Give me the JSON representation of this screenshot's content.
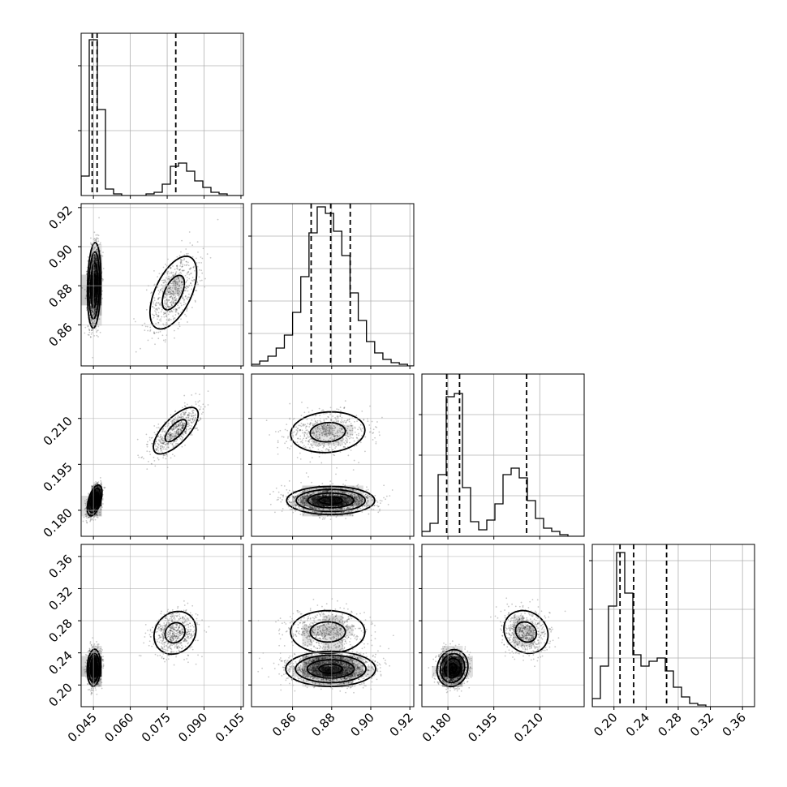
{
  "chart_data": {
    "type": "corner",
    "n_params": 4,
    "params": [
      {
        "range": [
          0.04,
          0.106
        ],
        "ticks": [
          0.045,
          0.06,
          0.075,
          0.09,
          0.105
        ],
        "tick_labels": [
          "0.045",
          "0.060",
          "0.075",
          "0.090",
          "0.105"
        ],
        "hist": {
          "edges": [
            0.04,
            0.0433,
            0.0466,
            0.0499,
            0.0532,
            0.0565,
            0.0598,
            0.0631,
            0.0664,
            0.0697,
            0.073,
            0.0763,
            0.0796,
            0.0829,
            0.0862,
            0.0895,
            0.0928,
            0.0961,
            0.0994,
            0.1027,
            0.106
          ],
          "counts": [
            0.12,
            0.96,
            0.53,
            0.04,
            0.01,
            0.0,
            0.0,
            0.0,
            0.01,
            0.02,
            0.07,
            0.18,
            0.2,
            0.15,
            0.09,
            0.05,
            0.02,
            0.01,
            0.0,
            0.0
          ]
        },
        "quantiles": [
          0.0445,
          0.0465,
          0.0785
        ],
        "hist_gridlines": [
          0.4,
          0.8
        ]
      },
      {
        "range": [
          0.839,
          0.922
        ],
        "ticks": [
          0.86,
          0.88,
          0.9,
          0.92
        ],
        "tick_labels": [
          "0.86",
          "0.88",
          "0.90",
          "0.92"
        ],
        "hist": {
          "edges": [
            0.839,
            0.8432,
            0.8474,
            0.8516,
            0.8558,
            0.86,
            0.8642,
            0.8684,
            0.8726,
            0.8768,
            0.881,
            0.8852,
            0.8894,
            0.8936,
            0.8978,
            0.902,
            0.9062,
            0.9104,
            0.9146,
            0.9188,
            0.922
          ],
          "counts": [
            0.01,
            0.03,
            0.06,
            0.11,
            0.19,
            0.33,
            0.55,
            0.82,
            0.98,
            0.94,
            0.83,
            0.68,
            0.45,
            0.28,
            0.15,
            0.08,
            0.04,
            0.02,
            0.01,
            0.0
          ]
        },
        "quantiles": [
          0.8695,
          0.8795,
          0.8895
        ],
        "hist_gridlines": [
          0.2,
          0.4,
          0.6,
          0.8
        ]
      },
      {
        "range": [
          0.1715,
          0.2245
        ],
        "ticks": [
          0.18,
          0.195,
          0.21
        ],
        "tick_labels": [
          "0.180",
          "0.195",
          "0.210"
        ],
        "hist": {
          "edges": [
            0.1715,
            0.17415,
            0.1768,
            0.17945,
            0.1821,
            0.18475,
            0.1874,
            0.19005,
            0.1927,
            0.19535,
            0.198,
            0.20065,
            0.2033,
            0.20595,
            0.2086,
            0.21125,
            0.2139,
            0.21655,
            0.2192,
            0.22185,
            0.2245
          ],
          "counts": [
            0.03,
            0.08,
            0.38,
            0.86,
            0.88,
            0.3,
            0.09,
            0.04,
            0.1,
            0.2,
            0.38,
            0.42,
            0.36,
            0.22,
            0.11,
            0.05,
            0.03,
            0.01,
            0.0,
            0.0
          ]
        },
        "quantiles": [
          0.1796,
          0.1838,
          0.2057
        ],
        "hist_gridlines": [
          0.25,
          0.5,
          0.75
        ]
      },
      {
        "range": [
          0.173,
          0.375
        ],
        "ticks": [
          0.2,
          0.24,
          0.28,
          0.32,
          0.36
        ],
        "tick_labels": [
          "0.20",
          "0.24",
          "0.28",
          "0.32",
          "0.36"
        ],
        "hist": {
          "edges": [
            0.173,
            0.1831,
            0.1932,
            0.2033,
            0.2134,
            0.2235,
            0.2336,
            0.2437,
            0.2538,
            0.2639,
            0.274,
            0.2841,
            0.2942,
            0.3043,
            0.3144,
            0.3245,
            0.3346,
            0.3447,
            0.3548,
            0.3649,
            0.375
          ],
          "counts": [
            0.05,
            0.25,
            0.62,
            0.95,
            0.7,
            0.32,
            0.25,
            0.28,
            0.3,
            0.22,
            0.12,
            0.06,
            0.02,
            0.01,
            0.0,
            0.0,
            0.0,
            0.0,
            0.0,
            0.0
          ]
        },
        "quantiles": [
          0.2075,
          0.2245,
          0.2655
        ],
        "hist_gridlines": [
          0.3,
          0.6,
          0.9
        ]
      }
    ],
    "pairs": [
      {
        "row": 1,
        "col": 0,
        "clusters": [
          {
            "mean": [
              0.0453,
              0.8802
            ],
            "sd": [
              0.0012,
              0.0095
            ],
            "rho": 0.15,
            "weight": 0.75
          },
          {
            "mean": [
              0.0775,
              0.8765
            ],
            "sd": [
              0.005,
              0.0098
            ],
            "rho": 0.55,
            "weight": 0.25
          }
        ]
      },
      {
        "row": 2,
        "col": 0,
        "clusters": [
          {
            "mean": [
              0.0455,
              0.1832
            ],
            "sd": [
              0.0013,
              0.0022
            ],
            "rho": 0.5,
            "weight": 0.75
          },
          {
            "mean": [
              0.0785,
              0.206
            ],
            "sd": [
              0.0048,
              0.004
            ],
            "rho": 0.7,
            "weight": 0.25
          }
        ]
      },
      {
        "row": 3,
        "col": 0,
        "clusters": [
          {
            "mean": [
              0.0452,
              0.2215
            ],
            "sd": [
              0.0012,
              0.01
            ],
            "rho": 0.1,
            "weight": 0.75
          },
          {
            "mean": [
              0.0782,
              0.265
            ],
            "sd": [
              0.0045,
              0.014
            ],
            "rho": 0.15,
            "weight": 0.25
          }
        ]
      },
      {
        "row": 2,
        "col": 1,
        "clusters": [
          {
            "mean": [
              0.8795,
              0.1832
            ],
            "sd": [
              0.0098,
              0.002
            ],
            "rho": 0.0,
            "weight": 0.75
          },
          {
            "mean": [
              0.878,
              0.2055
            ],
            "sd": [
              0.01,
              0.0035
            ],
            "rho": 0.1,
            "weight": 0.25
          }
        ]
      },
      {
        "row": 3,
        "col": 1,
        "clusters": [
          {
            "mean": [
              0.8795,
              0.22
            ],
            "sd": [
              0.01,
              0.0095
            ],
            "rho": 0.0,
            "weight": 0.75
          },
          {
            "mean": [
              0.878,
              0.266
            ],
            "sd": [
              0.01,
              0.014
            ],
            "rho": 0.0,
            "weight": 0.25
          }
        ]
      },
      {
        "row": 3,
        "col": 2,
        "clusters": [
          {
            "mean": [
              0.1815,
              0.221
            ],
            "sd": [
              0.0022,
              0.01
            ],
            "rho": 0.1,
            "weight": 0.75
          },
          {
            "mean": [
              0.2055,
              0.266
            ],
            "sd": [
              0.0038,
              0.014
            ],
            "rho": -0.15,
            "weight": 0.25
          }
        ]
      }
    ],
    "scatter_points_per_panel": 2600,
    "grid": true,
    "x_tick_labels_on_bottom_row_only": true,
    "y_tick_labels_on_first_column_only": true
  }
}
